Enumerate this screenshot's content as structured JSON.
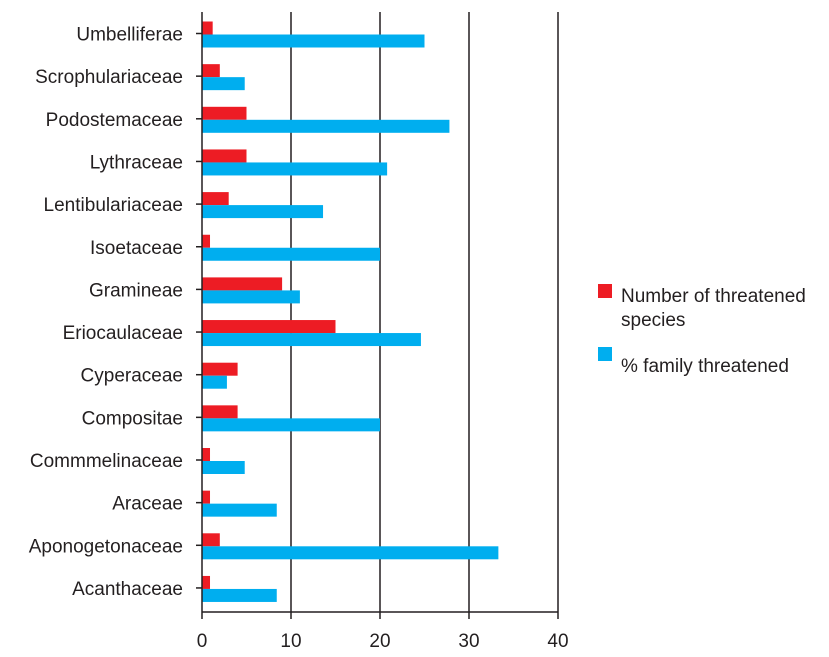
{
  "chart_data": {
    "type": "bar",
    "orientation": "horizontal",
    "categories": [
      "Umbelliferae",
      "Scrophulariaceae",
      "Podostemaceae",
      "Lythraceae",
      "Lentibulariaceae",
      "Isoetaceae",
      "Gramineae",
      "Eriocaulaceae",
      "Cyperaceae",
      "Compositae",
      "Commmelinaceae",
      "Araceae",
      "Aponogetonaceae",
      "Acanthaceae"
    ],
    "series": [
      {
        "name": "Number of threatened species",
        "color": "#ed1c24",
        "values": [
          1.2,
          2,
          5,
          5,
          3,
          0.9,
          9,
          15,
          4,
          4,
          0.9,
          0.9,
          2,
          0.9
        ]
      },
      {
        "name": "% family threatened",
        "color": "#00aeef",
        "values": [
          25,
          4.8,
          27.8,
          20.8,
          13.6,
          20,
          11,
          24.6,
          2.8,
          20,
          4.8,
          8.4,
          33.3,
          8.4
        ]
      }
    ],
    "xlim": [
      0,
      40
    ],
    "xticks": [
      "0",
      "10",
      "20",
      "30",
      "40"
    ],
    "grid": "vertical lines at ticks",
    "legend_position": "right",
    "title": "",
    "xlabel": "",
    "ylabel": ""
  }
}
